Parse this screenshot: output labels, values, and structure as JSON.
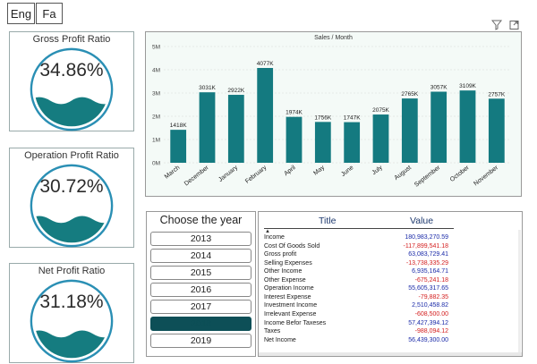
{
  "language_buttons": [
    "Eng",
    "Fa"
  ],
  "kpis": [
    {
      "title": "Gross Profit Ratio",
      "value": "34.86%"
    },
    {
      "title": "Operation Profit Ratio",
      "value": "30.72%"
    },
    {
      "title": "Net Profit Ratio",
      "value": "31.18%"
    }
  ],
  "icons": [
    "filter-icon",
    "expand-icon"
  ],
  "chart_data": {
    "type": "bar",
    "title": "Sales / Month",
    "categories": [
      "March",
      "December",
      "January",
      "February",
      "April",
      "May",
      "June",
      "July",
      "August",
      "September",
      "October",
      "November"
    ],
    "values": [
      1418,
      3031,
      2922,
      4077,
      1974,
      1756,
      1747,
      2075,
      2765,
      3057,
      3109,
      2757
    ],
    "data_labels": [
      "1418K",
      "3031K",
      "2922K",
      "4077K",
      "1974K",
      "1756K",
      "1747K",
      "2075K",
      "2765K",
      "3057K",
      "3109K",
      "2757K"
    ],
    "y_ticks": [
      "0M",
      "1M",
      "2M",
      "3M",
      "4M",
      "5M"
    ],
    "ylim": [
      0,
      5000
    ],
    "grid": true,
    "bar_color": "#147a80"
  },
  "year_slicer": {
    "title": "Choose the year",
    "years": [
      "2013",
      "2014",
      "2015",
      "2016",
      "2017",
      "2018",
      "2019"
    ],
    "selected": "2018"
  },
  "table": {
    "headers": {
      "title": "Title",
      "value": "Value"
    },
    "rows": [
      {
        "title": "Income",
        "value": "180,983,270.59"
      },
      {
        "title": "Cost Of Goods Sold",
        "value": "-117,899,541.18"
      },
      {
        "title": "Gross profit",
        "value": "63,083,729.41"
      },
      {
        "title": "Selling Expenses",
        "value": "-13,738,335.29"
      },
      {
        "title": "Other Income",
        "value": "6,935,164.71"
      },
      {
        "title": "Other Expense",
        "value": "-675,241.18"
      },
      {
        "title": "Operation Income",
        "value": "55,605,317.65"
      },
      {
        "title": "Interest Expense",
        "value": "-79,882.35"
      },
      {
        "title": "Investment Income",
        "value": "2,510,458.82"
      },
      {
        "title": "Irrelevant Expense",
        "value": "-608,500.00"
      },
      {
        "title": "Income Befor Taxeses",
        "value": "57,427,394.12"
      },
      {
        "title": "Taxes",
        "value": "-988,094.12"
      },
      {
        "title": "Net Income",
        "value": "56,439,300.00"
      }
    ]
  },
  "colors": {
    "accent": "#147a80",
    "selected_year": "#0d4f57",
    "gauge_ring": "#2a8fb4",
    "positive_value": "#1a2aa8",
    "negative_value": "#d42020"
  }
}
